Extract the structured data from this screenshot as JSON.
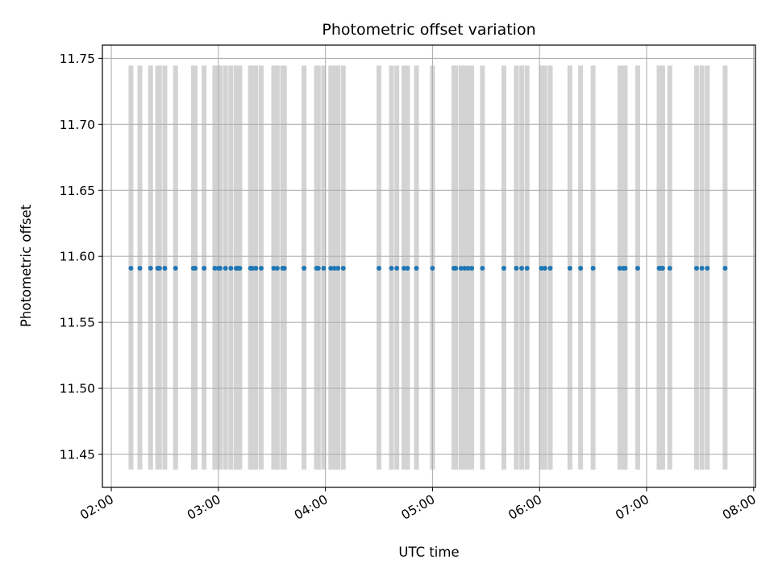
{
  "chart_data": {
    "type": "scatter",
    "title": "Photometric offset variation",
    "xlabel": "UTC time",
    "ylabel": "Photometric offset",
    "xlim": [
      "01:55",
      "08:01"
    ],
    "ylim": [
      11.425,
      11.76
    ],
    "grid": true,
    "x_ticks": [
      "02:00",
      "03:00",
      "04:00",
      "05:00",
      "06:00",
      "07:00",
      "08:00"
    ],
    "y_ticks": [
      "11.45",
      "11.50",
      "11.55",
      "11.60",
      "11.65",
      "11.70",
      "11.75"
    ],
    "series": [
      {
        "type": "points",
        "color": "#1f77b4",
        "y": 11.591,
        "x": [
          "02:11",
          "02:16",
          "02:22",
          "02:26",
          "02:27",
          "02:30",
          "02:36",
          "02:46",
          "02:47",
          "02:52",
          "02:58",
          "03:00",
          "03:01",
          "03:04",
          "03:07",
          "03:10",
          "03:11",
          "03:12",
          "03:18",
          "03:19",
          "03:21",
          "03:24",
          "03:31",
          "03:33",
          "03:36",
          "03:37",
          "03:48",
          "03:55",
          "03:56",
          "03:59",
          "04:03",
          "04:05",
          "04:07",
          "04:10",
          "04:30",
          "04:37",
          "04:40",
          "04:44",
          "04:46",
          "04:51",
          "05:00",
          "05:12",
          "05:13",
          "05:16",
          "05:18",
          "05:20",
          "05:22",
          "05:28",
          "05:40",
          "05:47",
          "05:50",
          "05:53",
          "06:01",
          "06:03",
          "06:06",
          "06:17",
          "06:23",
          "06:30",
          "06:45",
          "06:47",
          "06:48",
          "06:55",
          "07:07",
          "07:08",
          "07:09",
          "07:13",
          "07:28",
          "07:31",
          "07:34",
          "07:44"
        ]
      },
      {
        "type": "spans",
        "color": "#d3d3d3",
        "y_range": [
          11.4385,
          11.7445
        ],
        "x": [
          "02:11",
          "02:16",
          "02:22",
          "02:26",
          "02:27",
          "02:30",
          "02:36",
          "02:46",
          "02:47",
          "02:52",
          "02:58",
          "03:00",
          "03:01",
          "03:04",
          "03:07",
          "03:10",
          "03:11",
          "03:12",
          "03:18",
          "03:19",
          "03:21",
          "03:24",
          "03:31",
          "03:33",
          "03:36",
          "03:37",
          "03:48",
          "03:55",
          "03:56",
          "03:59",
          "04:03",
          "04:05",
          "04:07",
          "04:10",
          "04:30",
          "04:37",
          "04:40",
          "04:44",
          "04:46",
          "04:51",
          "05:00",
          "05:12",
          "05:13",
          "05:16",
          "05:18",
          "05:20",
          "05:22",
          "05:28",
          "05:40",
          "05:47",
          "05:50",
          "05:53",
          "06:01",
          "06:03",
          "06:06",
          "06:17",
          "06:23",
          "06:30",
          "06:45",
          "06:47",
          "06:48",
          "06:55",
          "07:07",
          "07:08",
          "07:09",
          "07:13",
          "07:28",
          "07:31",
          "07:34",
          "07:44"
        ]
      }
    ]
  }
}
